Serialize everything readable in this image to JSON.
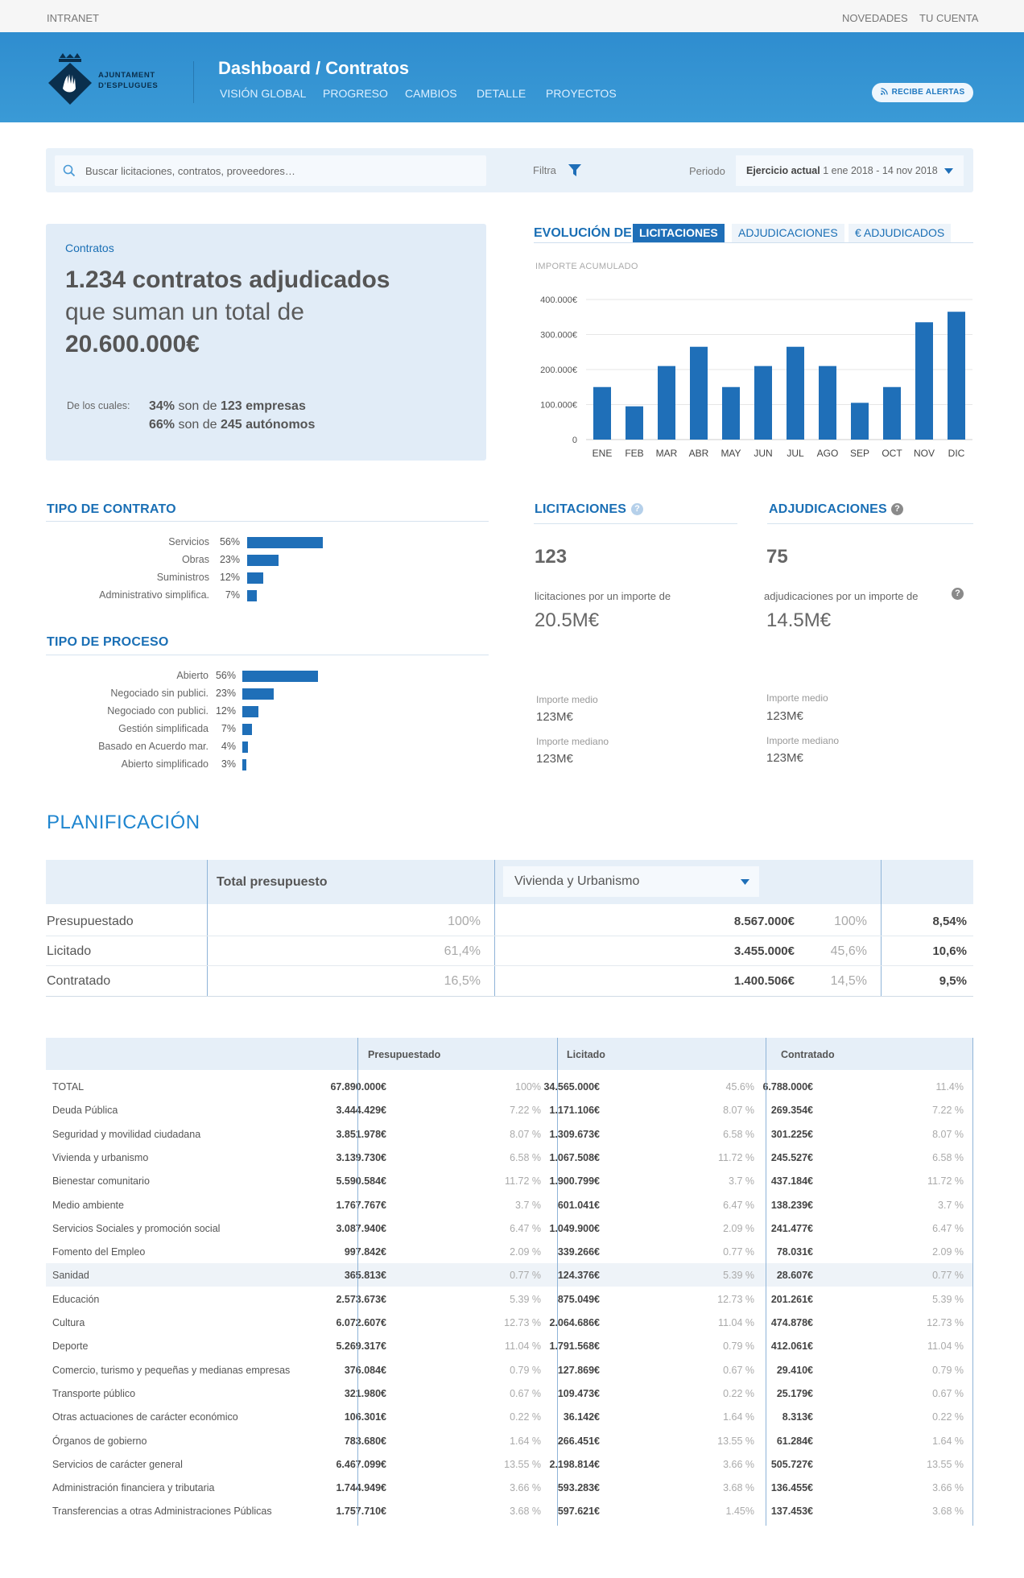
{
  "topbar": {
    "left": "INTRANET",
    "novedades": "NOVEDADES",
    "account": "TU CUENTA"
  },
  "brand": {
    "line1": "AJUNTAMENT",
    "line2": "D'ESPLUGUES"
  },
  "header": {
    "title": "Dashboard / Contratos",
    "nav": [
      "VISIÓN GLOBAL",
      "PROGRESO",
      "CAMBIOS",
      "DETALLE",
      "PROYECTOS"
    ],
    "alert_button": "RECIBE ALERTAS"
  },
  "search": {
    "placeholder": "Buscar licitaciones, contratos, proveedores…",
    "filter_label": "Filtra",
    "period_label": "Periodo",
    "period_bold": "Ejercicio actual",
    "period_range": "1 ene 2018 - 14 nov 2018"
  },
  "contracts_card": {
    "kicker": "Contratos",
    "headline_bold": "1.234 contratos adjudicados",
    "headline_rest": "que suman un total de",
    "total": "20.600.000€",
    "breakdown_label": "De los cuales:",
    "line1_pct": "34%",
    "line1_mid": "son de",
    "line1_tail": "123 empresas",
    "line2_pct": "66%",
    "line2_mid": "son de",
    "line2_tail": "245 autónomos"
  },
  "evolucion": {
    "title": "EVOLUCIÓN DE",
    "tabs": [
      "LICITACIONES",
      "ADJUDICACIONES",
      "€ ADJUDICADOS"
    ],
    "active_tab": 0,
    "subtitle": "IMPORTE ACUMULADO"
  },
  "chart_data": {
    "type": "bar",
    "ylabel": "IMPORTE ACUMULADO",
    "categories": [
      "ENE",
      "FEB",
      "MAR",
      "ABR",
      "MAY",
      "JUN",
      "JUL",
      "AGO",
      "SEP",
      "OCT",
      "NOV",
      "DIC"
    ],
    "values": [
      150000,
      95000,
      210000,
      265000,
      150000,
      210000,
      265000,
      210000,
      105000,
      150000,
      335000,
      365000
    ],
    "yticks": [
      0,
      100000,
      200000,
      300000,
      400000
    ],
    "ytick_labels": [
      "0",
      "100.000€",
      "200.000€",
      "300.000€",
      "400.000€"
    ],
    "ylim": [
      0,
      400000
    ],
    "grid": true,
    "color": "#1f6fb8"
  },
  "tipo_contrato": {
    "title": "TIPO DE CONTRATO",
    "items": [
      {
        "label": "Servicios",
        "pct": "56%",
        "value": 56
      },
      {
        "label": "Obras",
        "pct": "23%",
        "value": 23
      },
      {
        "label": "Suministros",
        "pct": "12%",
        "value": 12
      },
      {
        "label": "Administrativo simplifica.",
        "pct": "7%",
        "value": 7
      }
    ]
  },
  "tipo_proceso": {
    "title": "TIPO DE PROCESO",
    "items": [
      {
        "label": "Abierto",
        "pct": "56%",
        "value": 56
      },
      {
        "label": "Negociado sin publici.",
        "pct": "23%",
        "value": 23
      },
      {
        "label": "Negociado con publici.",
        "pct": "12%",
        "value": 12
      },
      {
        "label": "Gestión simplificada",
        "pct": "7%",
        "value": 7
      },
      {
        "label": "Basado en Acuerdo mar.",
        "pct": "4%",
        "value": 4
      },
      {
        "label": "Abierto simplificado",
        "pct": "3%",
        "value": 3
      }
    ]
  },
  "licitaciones": {
    "title": "LICITACIONES",
    "count": "123",
    "desc": "licitaciones por un importe de",
    "amount": "20.5M€",
    "medio_label": "Importe medio",
    "medio": "123M€",
    "mediano_label": "Importe mediano",
    "mediano": "123M€"
  },
  "adjudicaciones": {
    "title": "ADJUDICACIONES",
    "count": "75",
    "desc": "adjudicaciones por un importe de",
    "amount": "14.5M€",
    "medio_label": "Importe medio",
    "medio": "123M€",
    "mediano_label": "Importe mediano",
    "mediano": "123M€"
  },
  "planificacion": {
    "title": "PLANIFICACIÓN",
    "col_total": "Total presupuesto",
    "select_value": "Vivienda y Urbanismo",
    "rows": [
      {
        "label": "Presupuestado",
        "total_pct": "100%",
        "amount": "8.567.000€",
        "sel_pct": "100%",
        "share": "8,54%"
      },
      {
        "label": "Licitado",
        "total_pct": "61,4%",
        "amount": "3.455.000€",
        "sel_pct": "45,6%",
        "share": "10,6%"
      },
      {
        "label": "Contratado",
        "total_pct": "16,5%",
        "amount": "1.400.506€",
        "sel_pct": "14,5%",
        "share": "9,5%"
      }
    ]
  },
  "detalle": {
    "headers": [
      "Presupuestado",
      "Licitado",
      "Contratado"
    ],
    "highlight_row": 8,
    "rows": [
      [
        "TOTAL",
        "67.890.000€",
        "100%",
        "34.565.000€",
        "45.6%",
        "6.788.000€",
        "11.4%"
      ],
      [
        "Deuda Pública",
        "3.444.429€",
        "7.22 %",
        "1.171.106€",
        "8.07 %",
        "269.354€",
        "7.22 %"
      ],
      [
        "Seguridad y movilidad ciudadana",
        "3.851.978€",
        "8.07 %",
        "1.309.673€",
        "6.58 %",
        "301.225€",
        "8.07 %"
      ],
      [
        "Vivienda y urbanismo",
        "3.139.730€",
        "6.58 %",
        "1.067.508€",
        "11.72 %",
        "245.527€",
        "6.58 %"
      ],
      [
        "Bienestar comunitario",
        "5.590.584€",
        "11.72 %",
        "1.900.799€",
        "3.7 %",
        "437.184€",
        "11.72 %"
      ],
      [
        "Medio ambiente",
        "1.767.767€",
        "3.7 %",
        "601.041€",
        "6.47 %",
        "138.239€",
        "3.7 %"
      ],
      [
        "Servicios Sociales y promoción social",
        "3.087.940€",
        "6.47 %",
        "1.049.900€",
        "2.09 %",
        "241.477€",
        "6.47 %"
      ],
      [
        "Fomento del Empleo",
        "997.842€",
        "2.09 %",
        "339.266€",
        "0.77 %",
        "78.031€",
        "2.09 %"
      ],
      [
        "Sanidad",
        "365.813€",
        "0.77 %",
        "124.376€",
        "5.39 %",
        "28.607€",
        "0.77 %"
      ],
      [
        "Educación",
        "2.573.673€",
        "5.39 %",
        "875.049€",
        "12.73 %",
        "201.261€",
        "5.39 %"
      ],
      [
        "Cultura",
        "6.072.607€",
        "12.73 %",
        "2.064.686€",
        "11.04 %",
        "474.878€",
        "12.73 %"
      ],
      [
        "Deporte",
        "5.269.317€",
        "11.04 %",
        "1.791.568€",
        "0.79 %",
        "412.061€",
        "11.04 %"
      ],
      [
        "Comercio, turismo y pequeñas y medianas empresas",
        "376.084€",
        "0.79 %",
        "127.869€",
        "0.67 %",
        "29.410€",
        "0.79 %"
      ],
      [
        "Transporte público",
        "321.980€",
        "0.67 %",
        "109.473€",
        "0.22 %",
        "25.179€",
        "0.67 %"
      ],
      [
        "Otras actuaciones de carácter económico",
        "106.301€",
        "0.22 %",
        "36.142€",
        "1.64 %",
        "8.313€",
        "0.22 %"
      ],
      [
        "Órganos de gobierno",
        "783.680€",
        "1.64 %",
        "266.451€",
        "13.55 %",
        "61.284€",
        "1.64 %"
      ],
      [
        "Servicios de carácter general",
        "6.467.099€",
        "13.55 %",
        "2.198.814€",
        "3.66 %",
        "505.727€",
        "13.55 %"
      ],
      [
        "Administración financiera y tributaria",
        "1.744.949€",
        "3.66 %",
        "593.283€",
        "3.68 %",
        "136.455€",
        "3.66 %"
      ],
      [
        "Transferencias a otras Administraciones Públicas",
        "1.757.710€",
        "3.68 %",
        "597.621€",
        "1.45%",
        "137.453€",
        "3.68 %"
      ]
    ]
  }
}
